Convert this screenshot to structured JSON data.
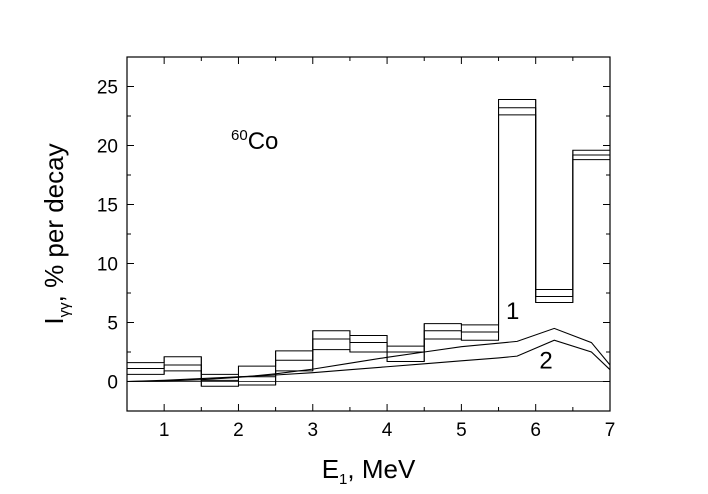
{
  "chart_data": {
    "type": "line",
    "title": "",
    "xlabel": {
      "main": "E",
      "sub": "1",
      "rest": ", MeV"
    },
    "ylabel": {
      "main": "I",
      "sub": "γγ",
      "rest": ", % per decay"
    },
    "xlim": [
      0.5,
      7.0
    ],
    "ylim": [
      -2.5,
      27.5
    ],
    "xticks": [
      1,
      2,
      3,
      4,
      5,
      6,
      7
    ],
    "yticks": [
      0,
      5,
      10,
      15,
      20,
      25
    ],
    "xtick_labels": [
      "1",
      "2",
      "3",
      "4",
      "5",
      "6",
      "7"
    ],
    "ytick_labels": [
      "0",
      "5",
      "10",
      "15",
      "20",
      "25"
    ],
    "grid": false,
    "histogram_bins": [
      {
        "x0": 0.5,
        "x1": 1.0,
        "values": [
          0.6,
          1.1,
          1.6
        ]
      },
      {
        "x0": 1.0,
        "x1": 1.5,
        "values": [
          0.9,
          1.4,
          2.1
        ]
      },
      {
        "x0": 1.5,
        "x1": 2.0,
        "values": [
          -0.4,
          0.1,
          0.6
        ]
      },
      {
        "x0": 2.0,
        "x1": 2.5,
        "values": [
          -0.3,
          0.4,
          1.3
        ]
      },
      {
        "x0": 2.5,
        "x1": 3.0,
        "values": [
          0.9,
          1.8,
          2.6
        ]
      },
      {
        "x0": 3.0,
        "x1": 3.5,
        "values": [
          2.7,
          3.6,
          4.3
        ]
      },
      {
        "x0": 3.5,
        "x1": 4.0,
        "values": [
          2.5,
          3.3,
          3.9
        ]
      },
      {
        "x0": 4.0,
        "x1": 4.5,
        "values": [
          1.7,
          2.5,
          3.0
        ]
      },
      {
        "x0": 4.5,
        "x1": 5.0,
        "values": [
          3.6,
          4.3,
          4.9
        ]
      },
      {
        "x0": 5.0,
        "x1": 5.5,
        "values": [
          3.5,
          4.2,
          4.8
        ]
      },
      {
        "x0": 5.5,
        "x1": 6.0,
        "values": [
          22.6,
          23.2,
          23.9
        ]
      },
      {
        "x0": 6.0,
        "x1": 6.5,
        "values": [
          6.7,
          7.2,
          7.8
        ]
      },
      {
        "x0": 6.5,
        "x1": 7.0,
        "values": [
          18.8,
          19.2,
          19.6
        ]
      }
    ],
    "series": [
      {
        "name": "1",
        "x": [
          0.5,
          1.0,
          1.5,
          2.0,
          2.5,
          3.0,
          3.5,
          4.0,
          4.5,
          5.0,
          5.5,
          5.75,
          6.25,
          6.75,
          7.0
        ],
        "y": [
          0.0,
          0.05,
          0.15,
          0.35,
          0.65,
          1.05,
          1.55,
          2.05,
          2.5,
          2.95,
          3.25,
          3.4,
          4.5,
          3.3,
          1.4
        ]
      },
      {
        "name": "2",
        "x": [
          0.5,
          1.0,
          1.5,
          2.0,
          2.5,
          3.0,
          3.5,
          4.0,
          4.5,
          5.0,
          5.5,
          5.75,
          6.25,
          6.75,
          7.0
        ],
        "y": [
          0.0,
          0.1,
          0.25,
          0.4,
          0.55,
          0.75,
          1.0,
          1.25,
          1.5,
          1.75,
          2.0,
          2.15,
          3.5,
          2.5,
          1.0
        ]
      }
    ],
    "baseline": 0,
    "annotations": [
      {
        "text_sup": "60",
        "text": "Co",
        "x": 1.9,
        "y": 19.7
      },
      {
        "text": "1",
        "x": 5.6,
        "y": 5.3
      },
      {
        "text": "2",
        "x": 6.05,
        "y": 1.1
      }
    ]
  }
}
